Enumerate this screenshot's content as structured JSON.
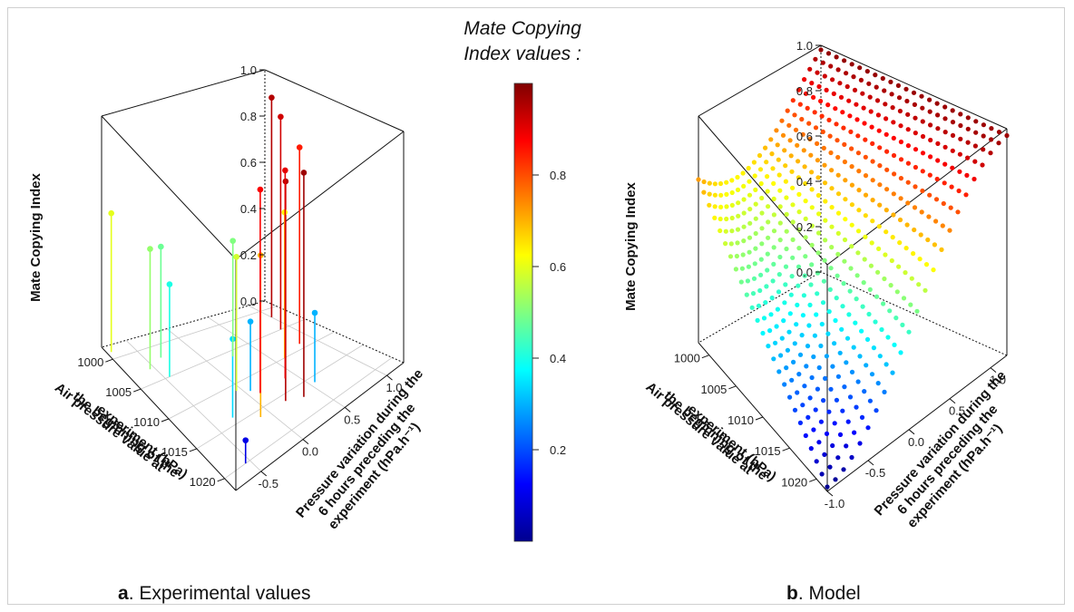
{
  "legend": {
    "title_line1": "Mate Copying",
    "title_line2": "Index values :",
    "ticks": [
      "0.2",
      "0.4",
      "0.6",
      "0.8"
    ],
    "tick_values": [
      0.2,
      0.4,
      0.6,
      0.8
    ],
    "range": [
      0.0,
      1.0
    ],
    "colormap": "jet (blue → cyan → yellow → red)"
  },
  "captions": {
    "a_letter": "a",
    "a_text": ". Experimental values",
    "b_letter": "b",
    "b_text": ". Model"
  },
  "axes": {
    "z_label": "Mate Copying Index",
    "z_ticks": [
      "0.0",
      "0.2",
      "0.4",
      "0.6",
      "0.8",
      "1.0"
    ],
    "pressure_label_lines": [
      "Air pressure value at",
      "the beginning of the",
      "experiment (hPa)"
    ],
    "pressure_ticks_a": [
      "1000",
      "1005",
      "1010",
      "1015",
      "1020"
    ],
    "pressure_ticks_b": [
      "1000",
      "1005",
      "1010",
      "1015",
      "1020"
    ],
    "variation_label_lines": [
      "Pressure variation during the",
      "6 hours preceding the",
      "experiment (hPa.h⁻¹)"
    ],
    "variation_ticks_a": [
      "-0.5",
      "0.0",
      "0.5",
      "1.0"
    ],
    "variation_ticks_b": [
      "-1.0",
      "-0.5",
      "0.0",
      "0.5",
      "1.0"
    ]
  },
  "chart_data": [
    {
      "type": "scatter",
      "subtype": "3d-stem",
      "title": "a. Experimental values",
      "xlabel": "Air pressure value at the beginning of the experiment (hPa)",
      "ylabel": "Pressure variation during the 6 hours preceding the experiment (hPa.h⁻¹)",
      "zlabel": "Mate Copying Index",
      "xlim": [
        998,
        1022
      ],
      "ylim": [
        -0.8,
        1.2
      ],
      "zlim": [
        0,
        1
      ],
      "points": [
        {
          "x": 999,
          "y": -0.75,
          "z": 0.6
        },
        {
          "x": 1003,
          "y": -0.55,
          "z": 0.52
        },
        {
          "x": 1005,
          "y": -0.45,
          "z": 0.4
        },
        {
          "x": 1002,
          "y": -0.35,
          "z": 0.48
        },
        {
          "x": 1020,
          "y": -0.55,
          "z": 0.1
        },
        {
          "x": 1014,
          "y": -0.3,
          "z": 0.34
        },
        {
          "x": 1011,
          "y": -0.05,
          "z": 0.58
        },
        {
          "x": 1012,
          "y": 0.05,
          "z": 0.3
        },
        {
          "x": 1016,
          "y": -0.1,
          "z": 0.7
        },
        {
          "x": 1013,
          "y": 0.1,
          "z": 0.88
        },
        {
          "x": 1016,
          "y": 0.2,
          "z": 0.95
        },
        {
          "x": 1017,
          "y": 0.35,
          "z": 0.97
        },
        {
          "x": 1006,
          "y": 0.25,
          "z": 0.5
        },
        {
          "x": 1010,
          "y": 0.6,
          "z": 0.63
        },
        {
          "x": 1016,
          "y": 0.55,
          "z": 0.3
        },
        {
          "x": 1005,
          "y": 0.9,
          "z": 0.92
        },
        {
          "x": 1009,
          "y": 0.85,
          "z": 0.85
        },
        {
          "x": 1002,
          "y": 1.0,
          "z": 0.95
        },
        {
          "x": 1013,
          "y": 0.4,
          "z": 0.9
        }
      ]
    },
    {
      "type": "scatter",
      "subtype": "3d-surface",
      "title": "b. Model",
      "xlabel": "Air pressure value at the beginning of the experiment (hPa)",
      "ylabel": "Pressure variation during the 6 hours preceding the experiment (hPa.h⁻¹)",
      "zlabel": "Mate Copying Index",
      "xlim": [
        998,
        1022
      ],
      "ylim": [
        -1.0,
        1.2
      ],
      "zlim": [
        0,
        1
      ],
      "grid": {
        "x_steps": 24,
        "y_steps": 22
      },
      "corner_values": {
        "low_pressure_low_variation": 0.72,
        "high_pressure_low_variation": 0.02,
        "low_pressure_high_variation": 0.98,
        "high_pressure_high_variation": 0.97
      }
    }
  ]
}
